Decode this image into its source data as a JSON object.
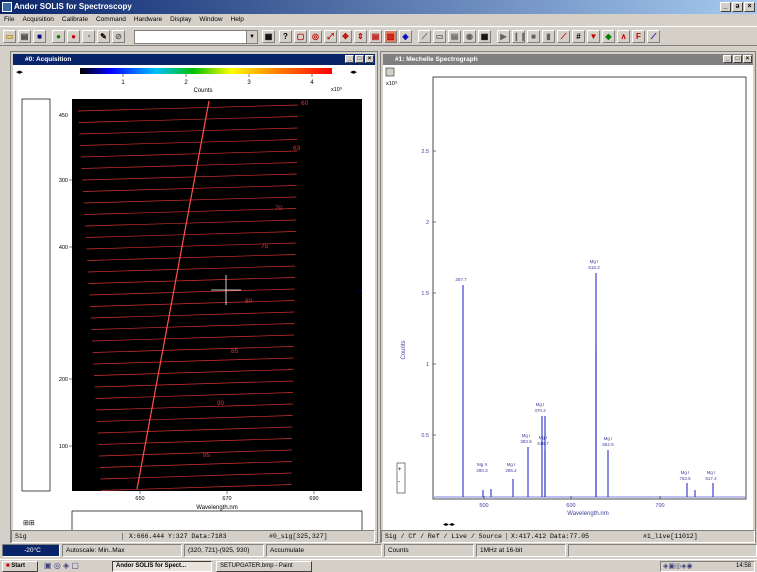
{
  "app": {
    "title": "Andor SOLIS for Spectroscopy",
    "window_buttons": [
      "_",
      "ə",
      "×"
    ]
  },
  "menu": [
    "File",
    "Acquisition",
    "Calibrate",
    "Command",
    "Hardware",
    "Display",
    "Window",
    "Help"
  ],
  "toolbar": {
    "help_label": "?"
  },
  "acquisition": {
    "title": "#0: Acquisition",
    "colorbar_ticks": [
      "1",
      "2",
      "3",
      "4"
    ],
    "colorbar_label": "Counts",
    "colorbar_exponent": "x10³",
    "y_ticks": [
      "400",
      "300",
      "200",
      "100"
    ],
    "y_tick_top": "450",
    "x_ticks": [
      "650",
      "670",
      "690"
    ],
    "x_label": "Wavelength.nm",
    "order_labels": [
      "60",
      "63",
      "70",
      "75",
      "80",
      "85",
      "90",
      "95"
    ],
    "status": {
      "mode": "Sig",
      "cursor": "X:666.444  Y:327  Data:7183",
      "ref": "#0_sig[325,327]"
    }
  },
  "spectrograph": {
    "title": "#1: Mechelle Spectrograph",
    "exponent": "x10³",
    "y_ticks": [
      "2.5",
      "2",
      "1.5",
      "1",
      "0.5"
    ],
    "x_ticks": [
      "500",
      "600",
      "700"
    ],
    "x_label": "Wavelength.nm",
    "y_label": "Counts",
    "peak_labels": [
      "257.7",
      "Mg I\n518.3",
      "Mg I\n470.3",
      "Mg I\n383.8",
      "Mg I\n516.7",
      "Mg I\n552.8",
      "Mg II\n280.3",
      "Mg I\n285.2",
      "Mg I\n763.5",
      "Mg I\n817.4"
    ],
    "status": {
      "mode": "Sig / Cf / Ref / Live / Source",
      "cursor": "X:417.412  Data:77.05",
      "ref": "#1_live[11012]"
    }
  },
  "statusbar": {
    "temp": "-20°C",
    "autoscale": "Autoscale: Min..Max",
    "region": "(320, 721)-(925, 930)",
    "mode": "Accumulate",
    "units": "Counts",
    "rate": "1MHz at 16-bit"
  },
  "taskbar": {
    "start": "Start",
    "tasks": [
      "Andor SOLIS for Spect...",
      "SETUPGATER.bmp - Paint"
    ],
    "clock": "14:58"
  }
}
